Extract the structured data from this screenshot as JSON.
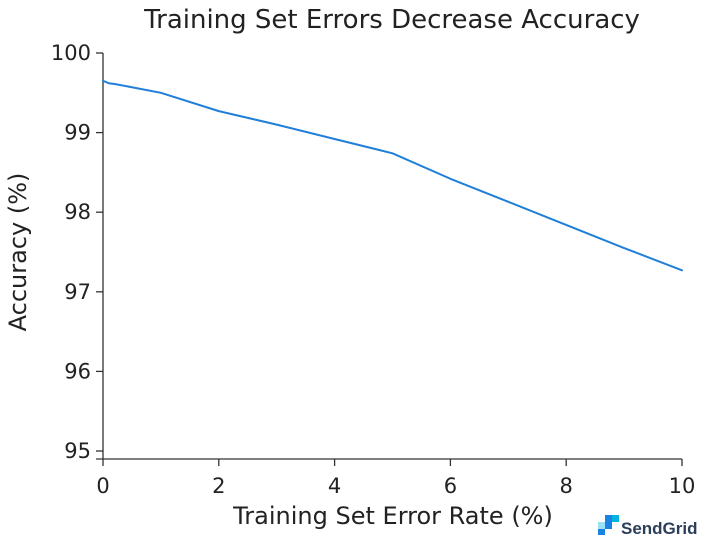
{
  "chart_data": {
    "type": "line",
    "title": "Training Set Errors Decrease Accuracy",
    "xlabel": "Training Set Error Rate (%)",
    "ylabel": "Accuracy (%)",
    "xlim": [
      0,
      10
    ],
    "ylim": [
      95,
      100
    ],
    "xticks": [
      0,
      2,
      4,
      6,
      8,
      10
    ],
    "yticks": [
      95,
      96,
      97,
      98,
      99,
      100
    ],
    "grid": false,
    "series": [
      {
        "color": "#1f7fd9",
        "x": [
          0,
          0.1,
          0.2,
          0.5,
          1,
          2,
          3,
          4,
          5,
          6,
          7,
          8,
          9,
          10
        ],
        "y": [
          99.65,
          99.62,
          99.61,
          99.57,
          99.5,
          99.27,
          99.1,
          98.92,
          98.74,
          98.42,
          98.13,
          97.84,
          97.55,
          97.27
        ]
      }
    ]
  },
  "branding": {
    "logo_text": "SendGrid",
    "logo_icon": "sendgrid-logo-icon",
    "logo_color": "#1a82e2"
  }
}
